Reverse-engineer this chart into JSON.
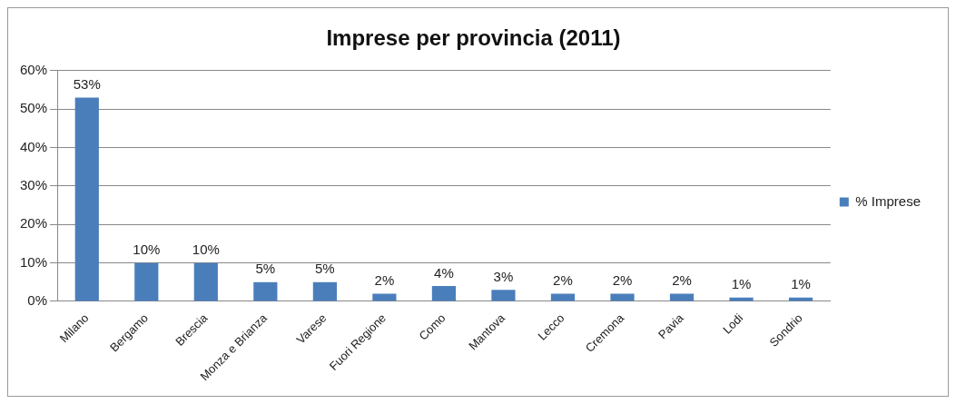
{
  "chart_data": {
    "type": "bar",
    "title": "Imprese per provincia (2011)",
    "categories": [
      "Milano",
      "Bergamo",
      "Brescia",
      "Monza e Brianza",
      "Varese",
      "Fuori Regione",
      "Como",
      "Mantova",
      "Lecco",
      "Cremona",
      "Pavia",
      "Lodi",
      "Sondrio"
    ],
    "series": [
      {
        "name": "% Imprese",
        "color": "#4a7ebb",
        "values": [
          53,
          10,
          10,
          5,
          5,
          2,
          4,
          3,
          2,
          2,
          2,
          1,
          1
        ],
        "value_labels": [
          "53%",
          "10%",
          "10%",
          "5%",
          "5%",
          "2%",
          "4%",
          "3%",
          "2%",
          "2%",
          "2%",
          "1%",
          "1%"
        ]
      }
    ],
    "ylim": [
      0,
      60
    ],
    "yticks": [
      {
        "value": 0,
        "label": "0%"
      },
      {
        "value": 10,
        "label": "10%"
      },
      {
        "value": 20,
        "label": "20%"
      },
      {
        "value": 30,
        "label": "30%"
      },
      {
        "value": 40,
        "label": "40%"
      },
      {
        "value": 50,
        "label": "50%"
      },
      {
        "value": 60,
        "label": "60%"
      }
    ],
    "grid": "y",
    "legend": "right"
  }
}
